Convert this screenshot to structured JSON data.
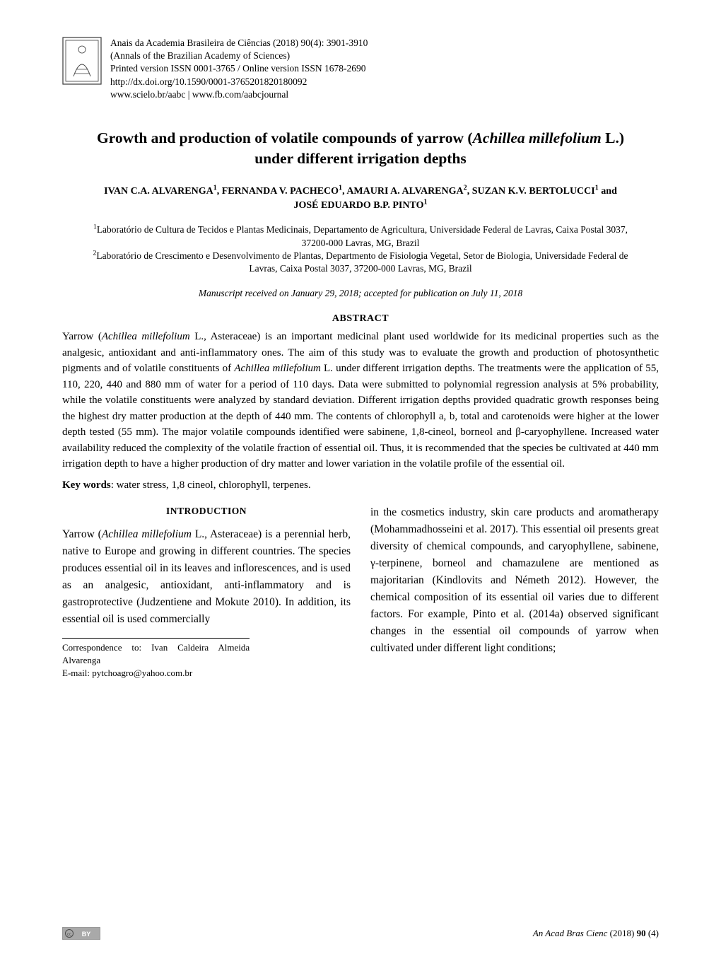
{
  "colors": {
    "background": "#ffffff",
    "text": "#000000",
    "logo_border": "#3a3a3a",
    "cc_badge_bg": "#a9a9a9",
    "cc_badge_border": "#6e6e6e",
    "rule": "#000000"
  },
  "typography": {
    "body_family": "Times New Roman, Times, serif",
    "title_pt": 21.5,
    "title_weight": "bold",
    "authors_pt": 14,
    "authors_weight": "bold",
    "meta_pt": 13.5,
    "abstract_heading_pt": 14,
    "abstract_body_pt": 15,
    "section_heading_pt": 13.5,
    "body_pt": 15.5,
    "body_line_height": 1.55,
    "footer_pt": 13,
    "abstract_justify": "justify"
  },
  "journal_meta": {
    "line1": "Anais da Academia Brasileira de Ciências (2018) 90(4): 3901-3910",
    "line2": "(Annals of the Brazilian Academy of Sciences)",
    "line3": "Printed version ISSN 0001-3765 / Online version ISSN 1678-2690",
    "line4": "http://dx.doi.org/10.1590/0001-3765201820180092",
    "line5": "www.scielo.br/aabc  |  www.fb.com/aabcjournal"
  },
  "title_html": "Growth and production of volatile compounds of yarrow (<i>Achillea millefolium</i> L.) under different irrigation depths",
  "authors_html": "IVAN C.A. ALVARENGA<sup>1</sup>, FERNANDA V. PACHECO<sup>1</sup>, AMAURI A. ALVARENGA<sup>2</sup>, SUZAN K.V. BERTOLUCCI<sup>1</sup> and JOSÉ EDUARDO B.P. PINTO<sup>1</sup>",
  "affiliations_html": "<sup>1</sup>Laboratório de Cultura de Tecidos e Plantas Medicinais, Departamento de Agricultura, Universidade Federal de Lavras, Caixa Postal 3037, 37200-000 Lavras, MG, Brazil<br><sup>2</sup>Laboratório de Crescimento e Desenvolvimento de Plantas, Departmento de Fisiologia Vegetal, Setor de Biologia, Universidade Federal de Lavras, Caixa Postal 3037, 37200-000 Lavras, MG, Brazil",
  "manuscript_dates": "Manuscript received on January 29, 2018; accepted for publication on July 11, 2018",
  "abstract_heading": "ABSTRACT",
  "abstract_body_html": "Yarrow (<i>Achillea millefolium</i> L., Asteraceae) is an important medicinal plant used worldwide for its medicinal properties such as the analgesic, antioxidant and anti-inflammatory ones. The aim of this study was to evaluate the growth and production of photosynthetic pigments and of volatile constituents of <i>Achillea millefolium</i> L. under different irrigation depths. The treatments were the application of 55, 110, 220, 440 and 880 mm of water for a period of 110 days. Data were submitted to polynomial regression analysis at 5% probability, while the volatile constituents were analyzed by standard deviation. Different irrigation depths provided quadratic growth responses being the highest dry matter production at the depth of 440 mm. The contents of chlorophyll a, b, total and carotenoids were higher at the lower depth tested (55 mm). The major volatile compounds identified were sabinene, 1,8-cineol, borneol and β-caryophyllene. Increased water availability reduced the complexity of the volatile fraction of essential oil. Thus, it is recommended that the species be cultivated at 440 mm irrigation depth to have a higher production of dry matter and lower variation in the volatile profile of the essential oil.",
  "keywords_label": "Key words",
  "keywords_value": ": water stress, 1,8 cineol, chlorophyll, terpenes.",
  "sections": {
    "introduction_heading": "INTRODUCTION",
    "intro_col_left_html": "Yarrow (<i>Achillea millefolium</i> L., Asteraceae) is a perennial herb, native to Europe and growing in different countries. The species produces essential oil in its leaves and inflorescences, and is used as an analgesic, antioxidant, anti-inflammatory and is gastroprotective (Judzentiene and Mokute 2010). In addition, its essential oil is used commercially",
    "intro_col_right_html": "in the cosmetics industry, skin care products and aromatherapy (Mohammadhosseini et al. 2017). This essential oil presents great diversity of chemical compounds, and caryophyllene, sabinene, γ-terpinene, borneol and chamazulene are mentioned as majoritarian (Kindlovits and Németh 2012). However, the chemical composition of its essential oil varies due to different factors. For example, Pinto et al. (2014a) observed significant changes in the essential oil compounds of yarrow when cultivated under different light conditions;"
  },
  "correspondence": {
    "line1": "Correspondence to: Ivan Caldeira Almeida Alvarenga",
    "line2": "E-mail: pytchoagro@yahoo.com.br"
  },
  "footer": {
    "cc_label": "cc  BY",
    "journal_abbrev": "An Acad Bras Cienc",
    "year_vol_html": " (2018) <b>90</b> (4)"
  }
}
